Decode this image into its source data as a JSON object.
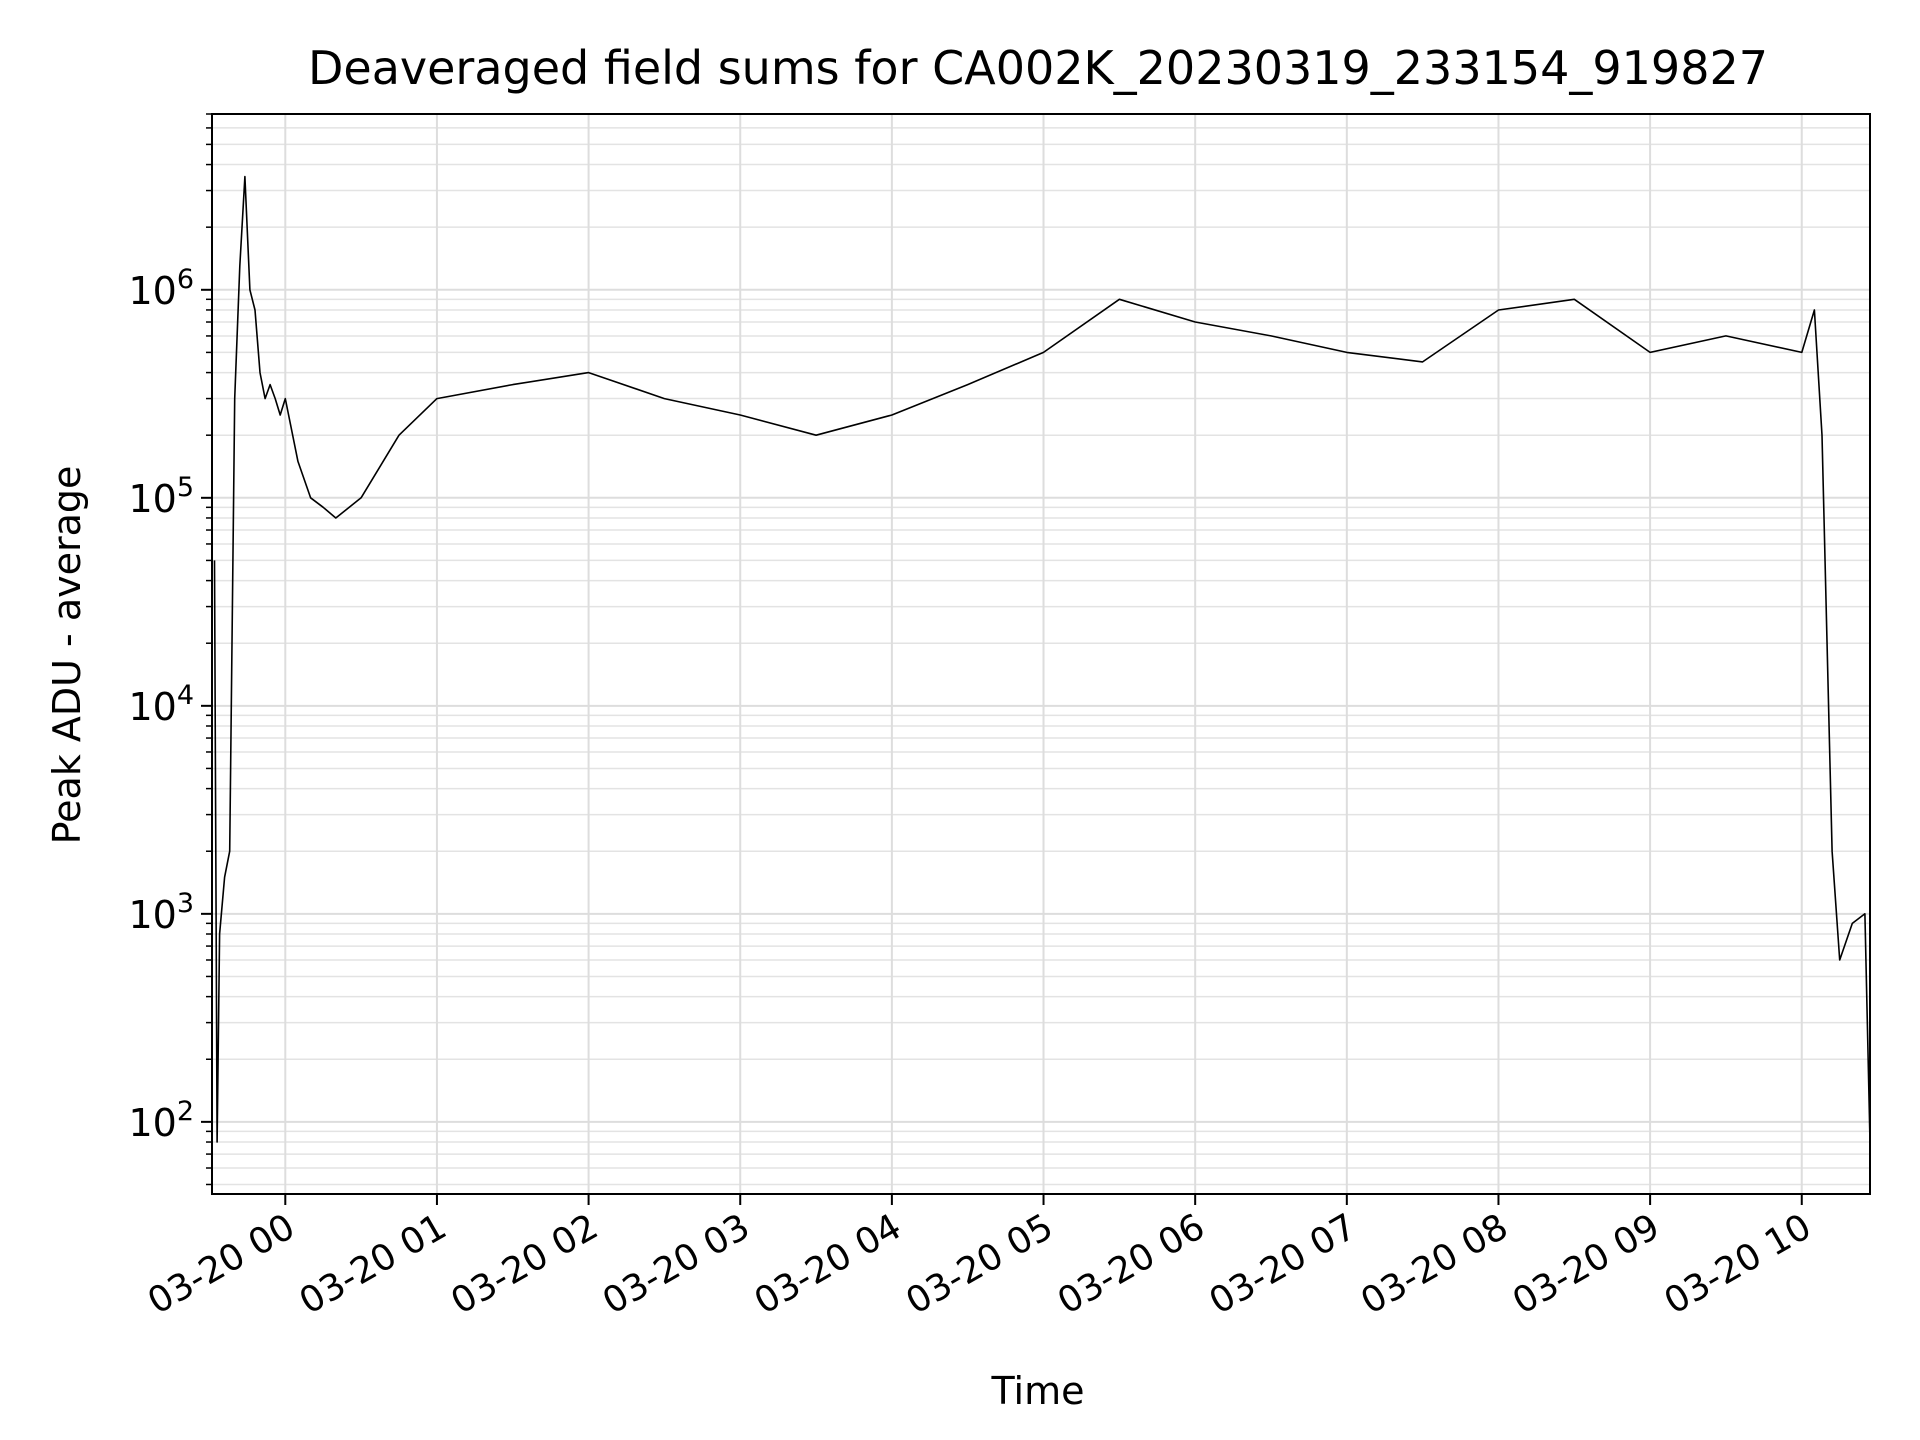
{
  "chart_data": {
    "type": "line",
    "title": "Deaveraged field sums for CA002K_20230319_233154_919827",
    "xlabel": "Time",
    "ylabel": "Peak ADU - average",
    "x_ticks": [
      "03-20 00",
      "03-20 01",
      "03-20 02",
      "03-20 03",
      "03-20 04",
      "03-20 05",
      "03-20 06",
      "03-20 07",
      "03-20 08",
      "03-20 09",
      "03-20 10"
    ],
    "y_ticks": [
      {
        "base": "10",
        "exp": "2",
        "value": 100
      },
      {
        "base": "10",
        "exp": "3",
        "value": 1000
      },
      {
        "base": "10",
        "exp": "4",
        "value": 10000
      },
      {
        "base": "10",
        "exp": "5",
        "value": 100000
      },
      {
        "base": "10",
        "exp": "6",
        "value": 1000000
      }
    ],
    "x_range": [
      "2023-03-19 23:31",
      "2023-03-20 10:27"
    ],
    "ylim": [
      45,
      7000000
    ],
    "y_scale": "log",
    "grid": true,
    "line_color": "#000000",
    "series": [
      {
        "x": [
          "2023-03-19 23:32",
          "2023-03-19 23:33",
          "2023-03-19 23:34",
          "2023-03-19 23:36",
          "2023-03-19 23:38",
          "2023-03-19 23:40",
          "2023-03-19 23:42",
          "2023-03-19 23:44",
          "2023-03-19 23:46",
          "2023-03-19 23:48",
          "2023-03-19 23:50",
          "2023-03-19 23:52",
          "2023-03-19 23:54",
          "2023-03-19 23:56",
          "2023-03-19 23:58",
          "2023-03-20 00:00",
          "2023-03-20 00:05",
          "2023-03-20 00:10",
          "2023-03-20 00:15",
          "2023-03-20 00:20",
          "2023-03-20 00:30",
          "2023-03-20 00:45",
          "2023-03-20 01:00",
          "2023-03-20 01:30",
          "2023-03-20 02:00",
          "2023-03-20 02:30",
          "2023-03-20 03:00",
          "2023-03-20 03:30",
          "2023-03-20 04:00",
          "2023-03-20 04:30",
          "2023-03-20 05:00",
          "2023-03-20 05:30",
          "2023-03-20 06:00",
          "2023-03-20 06:30",
          "2023-03-20 07:00",
          "2023-03-20 07:30",
          "2023-03-20 08:00",
          "2023-03-20 08:30",
          "2023-03-20 09:00",
          "2023-03-20 09:30",
          "2023-03-20 10:00",
          "2023-03-20 10:05",
          "2023-03-20 10:08",
          "2023-03-20 10:12",
          "2023-03-20 10:15",
          "2023-03-20 10:20",
          "2023-03-20 10:25",
          "2023-03-20 10:27"
        ],
        "y": [
          50000,
          80,
          800,
          1500,
          2000,
          300000,
          1300000,
          3500000,
          1000000,
          800000,
          400000,
          300000,
          350000,
          300000,
          250000,
          300000,
          150000,
          100000,
          90000,
          80000,
          100000,
          200000,
          300000,
          350000,
          400000,
          300000,
          250000,
          200000,
          250000,
          350000,
          500000,
          900000,
          700000,
          600000,
          500000,
          450000,
          800000,
          900000,
          500000,
          600000,
          500000,
          800000,
          200000,
          2000,
          600,
          900,
          1000,
          80
        ]
      }
    ]
  }
}
